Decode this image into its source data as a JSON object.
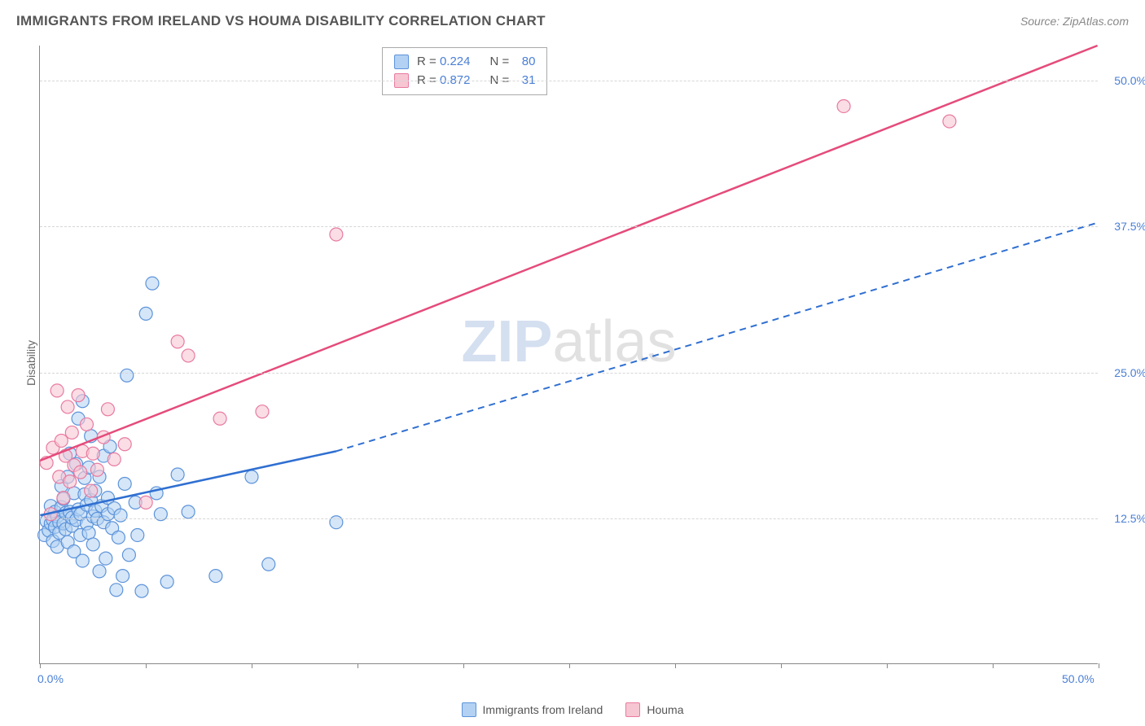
{
  "header": {
    "title": "IMMIGRANTS FROM IRELAND VS HOUMA DISABILITY CORRELATION CHART",
    "source": "Source: ZipAtlas.com"
  },
  "watermark": {
    "zip": "ZIP",
    "atlas": "atlas"
  },
  "axes": {
    "ylabel": "Disability",
    "x_min": 0.0,
    "x_max": 50.0,
    "y_min": 0.0,
    "y_max": 53.0,
    "x_zero_label": "0.0%",
    "x_max_label": "50.0%",
    "y_grid": [
      {
        "v": 12.5,
        "label": "12.5%"
      },
      {
        "v": 25.0,
        "label": "25.0%"
      },
      {
        "v": 37.5,
        "label": "37.5%"
      },
      {
        "v": 50.0,
        "label": "50.0%"
      }
    ],
    "x_ticks": [
      0,
      5,
      10,
      15,
      20,
      25,
      30,
      35,
      40,
      45,
      50
    ],
    "grid_color": "#d6d6d6",
    "axis_label_color": "#4a7fd6"
  },
  "series": [
    {
      "name": "Immigrants from Ireland",
      "color_fill": "#b3d1f3",
      "color_stroke": "#5c93da",
      "marker_radius": 8,
      "marker_opacity": 0.55,
      "stats": {
        "R": "0.224",
        "N": "80"
      },
      "trend": {
        "solid": {
          "x1": 0.0,
          "y1": 12.7,
          "x2": 14.0,
          "y2": 18.2
        },
        "dashed": {
          "x1": 14.0,
          "y1": 18.2,
          "x2": 50.0,
          "y2": 37.8
        },
        "line_color": "#2f6fd1",
        "line_width": 2.5
      },
      "points": [
        [
          0.2,
          11.0
        ],
        [
          0.3,
          12.2
        ],
        [
          0.4,
          11.4
        ],
        [
          0.5,
          12.0
        ],
        [
          0.5,
          13.5
        ],
        [
          0.6,
          10.5
        ],
        [
          0.6,
          12.3
        ],
        [
          0.7,
          11.7
        ],
        [
          0.7,
          13.0
        ],
        [
          0.8,
          12.6
        ],
        [
          0.8,
          10.0
        ],
        [
          0.9,
          12.1
        ],
        [
          0.9,
          11.2
        ],
        [
          1.0,
          13.4
        ],
        [
          1.0,
          15.2
        ],
        [
          1.1,
          12.0
        ],
        [
          1.1,
          14.1
        ],
        [
          1.2,
          11.5
        ],
        [
          1.2,
          12.9
        ],
        [
          1.3,
          16.0
        ],
        [
          1.3,
          10.4
        ],
        [
          1.4,
          13.0
        ],
        [
          1.4,
          18.0
        ],
        [
          1.5,
          11.8
        ],
        [
          1.5,
          12.5
        ],
        [
          1.6,
          14.6
        ],
        [
          1.6,
          9.6
        ],
        [
          1.7,
          12.3
        ],
        [
          1.7,
          17.1
        ],
        [
          1.8,
          13.2
        ],
        [
          1.8,
          21.0
        ],
        [
          1.9,
          11.0
        ],
        [
          1.9,
          12.8
        ],
        [
          2.0,
          22.5
        ],
        [
          2.0,
          8.8
        ],
        [
          2.1,
          14.5
        ],
        [
          2.1,
          15.9
        ],
        [
          2.2,
          12.0
        ],
        [
          2.2,
          13.6
        ],
        [
          2.3,
          16.8
        ],
        [
          2.3,
          11.2
        ],
        [
          2.4,
          14.0
        ],
        [
          2.4,
          19.5
        ],
        [
          2.5,
          12.6
        ],
        [
          2.5,
          10.2
        ],
        [
          2.6,
          14.8
        ],
        [
          2.6,
          13.1
        ],
        [
          2.7,
          12.4
        ],
        [
          2.8,
          16.0
        ],
        [
          2.8,
          7.9
        ],
        [
          2.9,
          13.5
        ],
        [
          3.0,
          12.1
        ],
        [
          3.0,
          17.8
        ],
        [
          3.1,
          9.0
        ],
        [
          3.2,
          14.2
        ],
        [
          3.2,
          12.8
        ],
        [
          3.3,
          18.6
        ],
        [
          3.4,
          11.6
        ],
        [
          3.5,
          13.3
        ],
        [
          3.6,
          6.3
        ],
        [
          3.7,
          10.8
        ],
        [
          3.8,
          12.7
        ],
        [
          3.9,
          7.5
        ],
        [
          4.0,
          15.4
        ],
        [
          4.1,
          24.7
        ],
        [
          4.2,
          9.3
        ],
        [
          4.5,
          13.8
        ],
        [
          4.6,
          11.0
        ],
        [
          4.8,
          6.2
        ],
        [
          5.0,
          30.0
        ],
        [
          5.3,
          32.6
        ],
        [
          5.5,
          14.6
        ],
        [
          5.7,
          12.8
        ],
        [
          6.0,
          7.0
        ],
        [
          6.5,
          16.2
        ],
        [
          7.0,
          13.0
        ],
        [
          8.3,
          7.5
        ],
        [
          10.0,
          16.0
        ],
        [
          10.8,
          8.5
        ],
        [
          14.0,
          12.1
        ]
      ]
    },
    {
      "name": "Houma",
      "color_fill": "#f7c6d3",
      "color_stroke": "#e97aa0",
      "marker_radius": 8,
      "marker_opacity": 0.6,
      "stats": {
        "R": "0.872",
        "N": "31"
      },
      "trend": {
        "solid": {
          "x1": 0.0,
          "y1": 17.4,
          "x2": 50.0,
          "y2": 53.0
        },
        "dashed": null,
        "line_color": "#e54b7b",
        "line_width": 2.5
      },
      "points": [
        [
          0.3,
          17.2
        ],
        [
          0.5,
          12.8
        ],
        [
          0.6,
          18.5
        ],
        [
          0.8,
          23.4
        ],
        [
          0.9,
          16.0
        ],
        [
          1.0,
          19.1
        ],
        [
          1.1,
          14.2
        ],
        [
          1.2,
          17.8
        ],
        [
          1.3,
          22.0
        ],
        [
          1.4,
          15.6
        ],
        [
          1.5,
          19.8
        ],
        [
          1.6,
          17.0
        ],
        [
          1.8,
          23.0
        ],
        [
          1.9,
          16.4
        ],
        [
          2.0,
          18.2
        ],
        [
          2.2,
          20.5
        ],
        [
          2.4,
          14.8
        ],
        [
          2.5,
          18.0
        ],
        [
          2.7,
          16.6
        ],
        [
          3.0,
          19.4
        ],
        [
          3.2,
          21.8
        ],
        [
          3.5,
          17.5
        ],
        [
          4.0,
          18.8
        ],
        [
          5.0,
          13.8
        ],
        [
          6.5,
          27.6
        ],
        [
          7.0,
          26.4
        ],
        [
          8.5,
          21.0
        ],
        [
          10.5,
          21.6
        ],
        [
          14.0,
          36.8
        ],
        [
          38.0,
          47.8
        ],
        [
          43.0,
          46.5
        ]
      ]
    }
  ],
  "legend": {
    "items": [
      {
        "label": "Immigrants from Ireland",
        "fill": "#b3d1f3",
        "stroke": "#5c93da"
      },
      {
        "label": "Houma",
        "fill": "#f7c6d3",
        "stroke": "#e97aa0"
      }
    ]
  }
}
